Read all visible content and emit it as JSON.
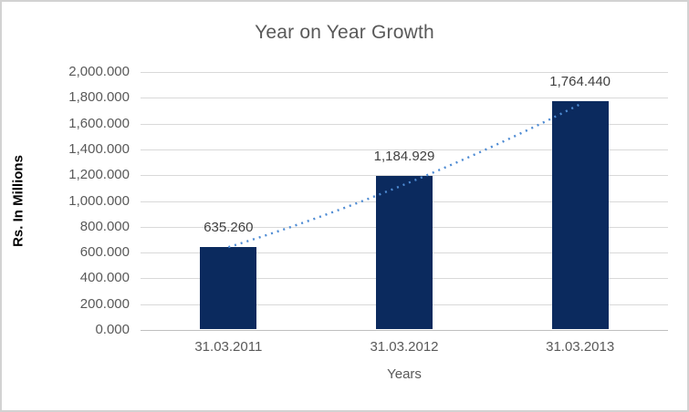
{
  "chart_data": {
    "type": "bar",
    "title": "Year on Year Growth",
    "xlabel": "Years",
    "ylabel": "Rs. In Millions",
    "categories": [
      "31.03.2011",
      "31.03.2012",
      "31.03.2013"
    ],
    "series": [
      {
        "name": "Rs. In Millions",
        "values": [
          635.26,
          1184.929,
          1764.44
        ]
      }
    ],
    "data_labels": [
      "635.260",
      "1,184.929",
      "1,764.440"
    ],
    "ylim": [
      0,
      2000
    ],
    "y_tick_step": 200,
    "y_ticks": [
      {
        "value": 2000,
        "label": "2,000.000"
      },
      {
        "value": 1800,
        "label": "1,800.000"
      },
      {
        "value": 1600,
        "label": "1,600.000"
      },
      {
        "value": 1400,
        "label": "1,400.000"
      },
      {
        "value": 1200,
        "label": "1,200.000"
      },
      {
        "value": 1000,
        "label": "1,000.000"
      },
      {
        "value": 800,
        "label": "800.000"
      },
      {
        "value": 600,
        "label": "600.000"
      },
      {
        "value": 400,
        "label": "400.000"
      },
      {
        "value": 200,
        "label": "200.000"
      },
      {
        "value": 0,
        "label": "0.000"
      }
    ],
    "grid": true,
    "legend": "none",
    "trendline": {
      "type": "dotted",
      "shape": "slight-curve"
    },
    "colors": {
      "bar": "#0b2a5e",
      "trendline": "#4e8bd3",
      "gridline": "#d9d9d9",
      "axis_line": "#bfbfbf",
      "tick_text": "#595959",
      "title_text": "#595959",
      "data_label_text": "#404040",
      "border": "#d2d2d2"
    }
  }
}
